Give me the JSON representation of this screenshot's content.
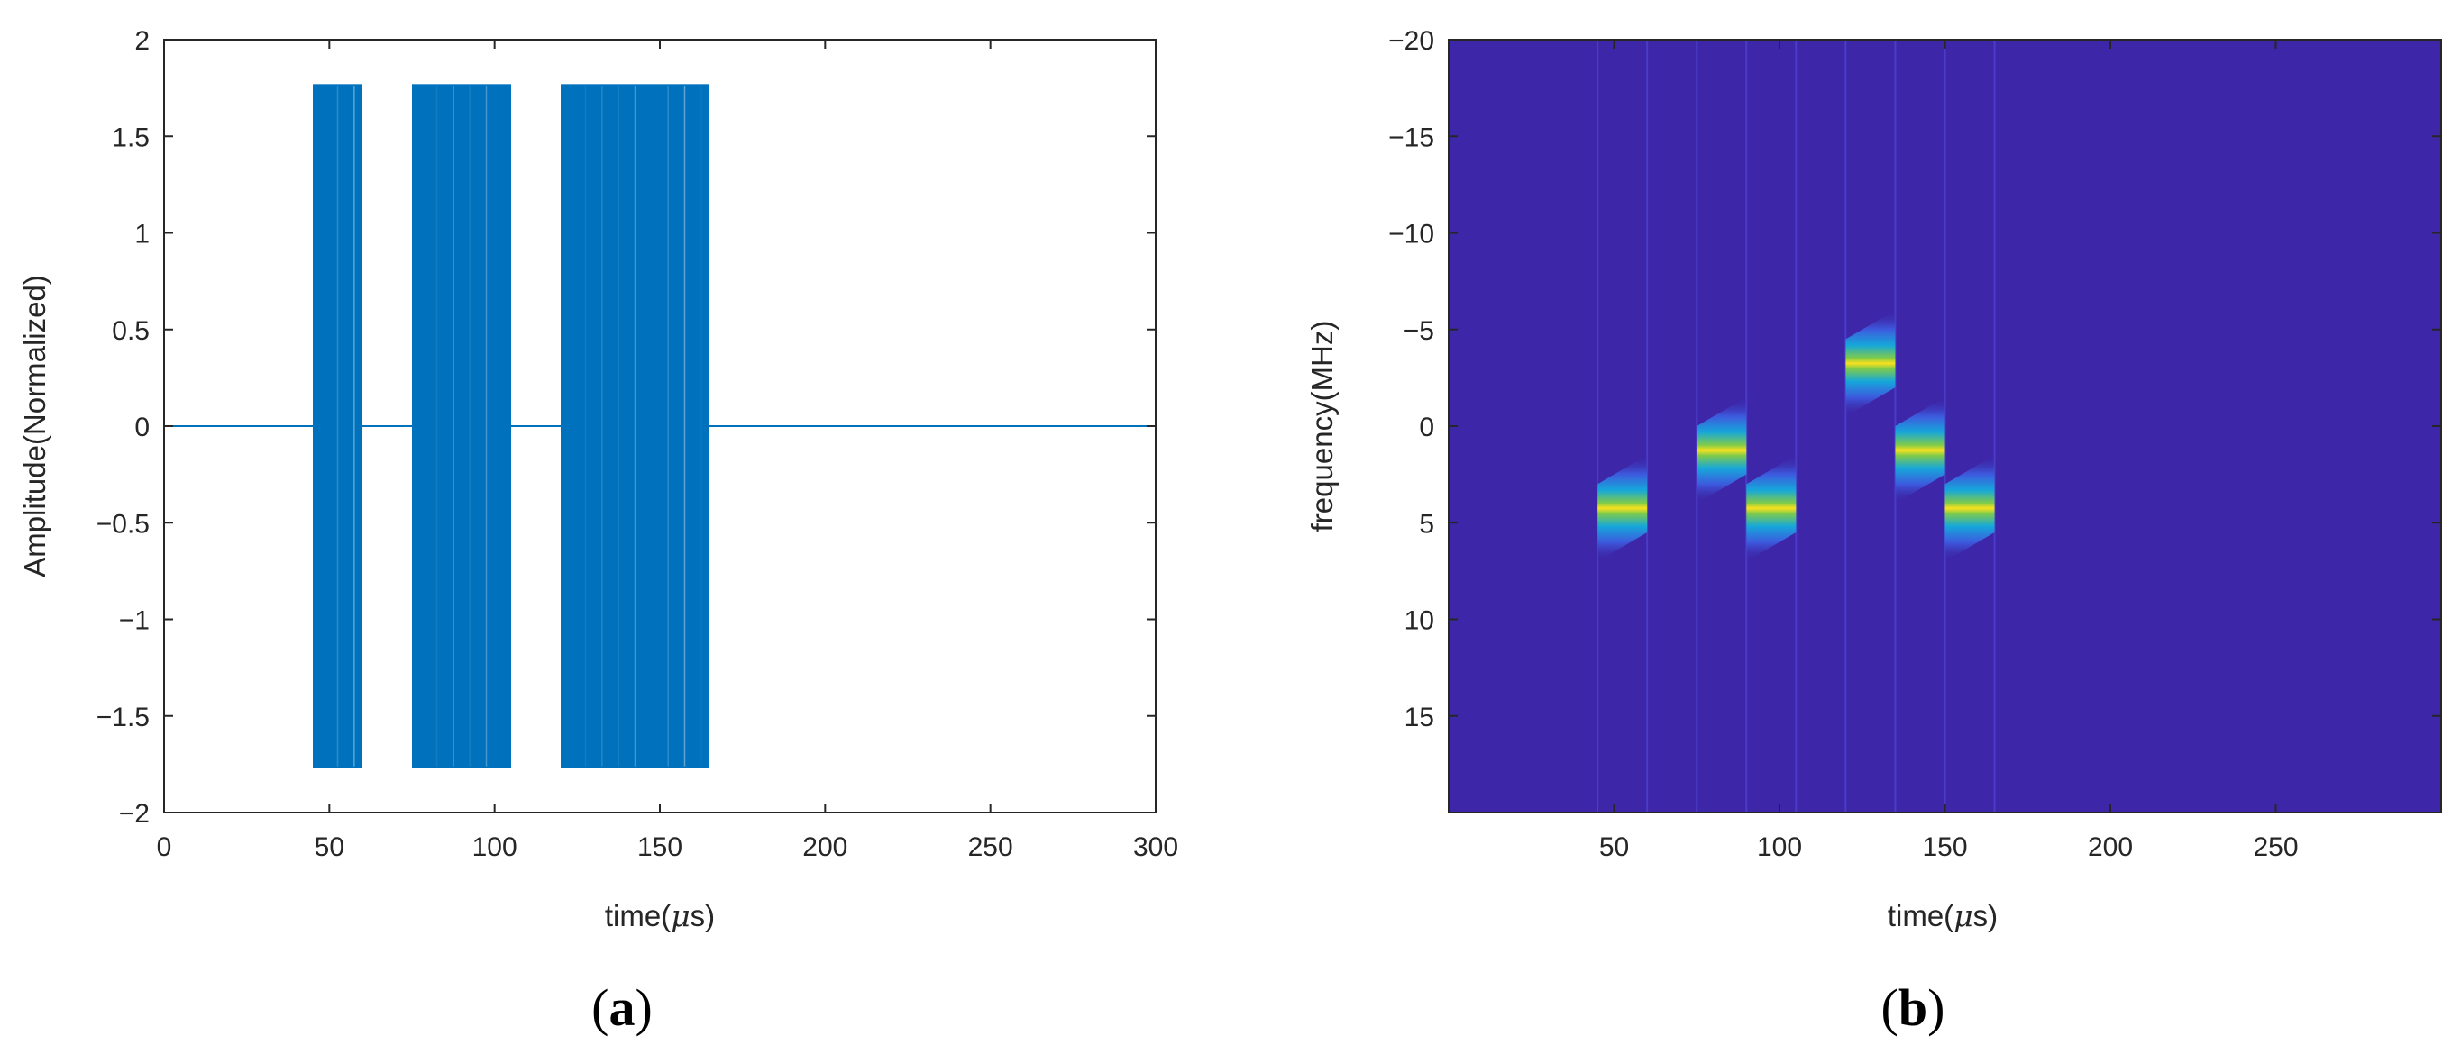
{
  "chart_data": [
    {
      "type": "line",
      "panel_label": "a",
      "xlabel_prefix": "time(",
      "xlabel_mu": "μ",
      "xlabel_suffix": "s)",
      "ylabel": "Amplitude(Normalized)",
      "xlim": [
        0,
        300
      ],
      "ylim": [
        -2,
        2
      ],
      "xticks": [
        0,
        50,
        100,
        150,
        200,
        250,
        300
      ],
      "yticks": [
        2,
        1.5,
        1,
        0.5,
        0,
        -0.5,
        -1,
        -1.5,
        -2
      ],
      "ytick_labels": [
        "2",
        "1.5",
        "1",
        "0.5",
        "0",
        "−0.5",
        "−1",
        "−1.5",
        "−2"
      ],
      "grid": false,
      "line_color": "#0072BD",
      "baseline": 0,
      "envelope_amplitude": 1.77,
      "pulses": [
        {
          "start": 45,
          "end": 60
        },
        {
          "start": 75,
          "end": 105
        },
        {
          "start": 120,
          "end": 165
        }
      ],
      "series": [
        {
          "x": [
            0,
            45,
            45,
            60,
            60,
            75,
            75,
            105,
            105,
            120,
            120,
            165,
            165,
            300
          ],
          "y": [
            0,
            0,
            1.77,
            1.77,
            0,
            0,
            1.77,
            1.77,
            0,
            0,
            1.77,
            1.77,
            0,
            0
          ]
        }
      ]
    },
    {
      "type": "heatmap",
      "panel_label": "b",
      "xlabel_prefix": "time(",
      "xlabel_mu": "μ",
      "xlabel_suffix": "s)",
      "ylabel": "frequency(MHz)",
      "xlim": [
        0,
        300
      ],
      "ylim": [
        -20,
        20
      ],
      "y_reversed": true,
      "xticks": [
        50,
        100,
        150,
        200,
        250
      ],
      "yticks": [
        -20,
        -15,
        -10,
        -5,
        0,
        5,
        10,
        15
      ],
      "ytick_labels": [
        "−20",
        "−15",
        "−10",
        "−5",
        "0",
        "5",
        "10",
        "15"
      ],
      "background_color": "#3D26A8",
      "stripe_color": "#4A3CC8",
      "chirp_colors": [
        "#F9E11E",
        "#7FCB4A",
        "#16A7DA",
        "#3D5ADE"
      ],
      "chirps": [
        {
          "t_start": 45,
          "t_end": 60,
          "f_start": 5,
          "f_end": 3.5
        },
        {
          "t_start": 75,
          "t_end": 90,
          "f_start": 2,
          "f_end": 0.5
        },
        {
          "t_start": 90,
          "t_end": 105,
          "f_start": 5,
          "f_end": 3.5
        },
        {
          "t_start": 120,
          "t_end": 135,
          "f_start": -2.5,
          "f_end": -4
        },
        {
          "t_start": 135,
          "t_end": 150,
          "f_start": 2,
          "f_end": 0.5
        },
        {
          "t_start": 150,
          "t_end": 165,
          "f_start": 5,
          "f_end": 3.5
        }
      ],
      "pulse_edges": [
        45,
        60,
        75,
        90,
        105,
        120,
        135,
        150,
        165
      ]
    }
  ]
}
